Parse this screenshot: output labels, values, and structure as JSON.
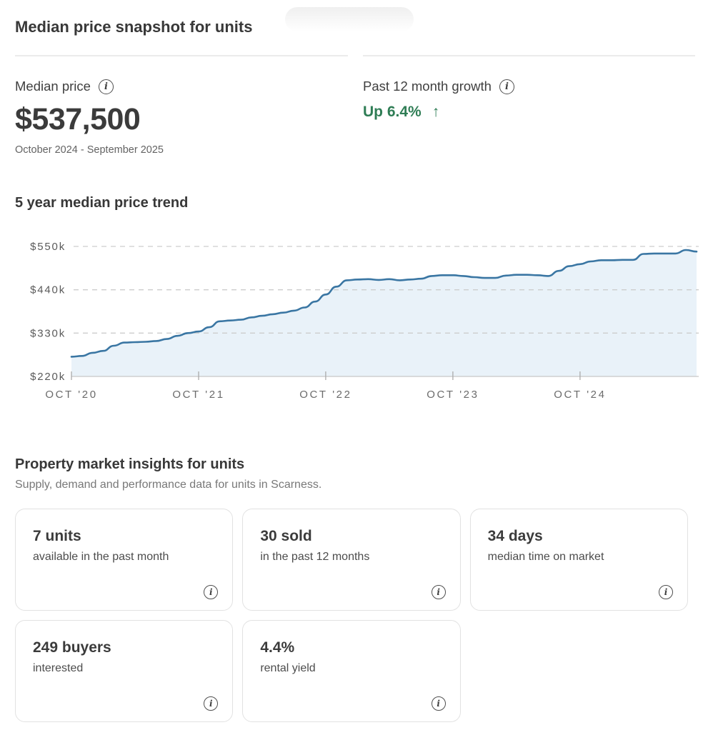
{
  "decoration": {
    "top_pill": "partial pill cut off at top edge"
  },
  "icons": {
    "info_glyph": "i",
    "up_arrow": "↑"
  },
  "snapshot": {
    "title": "Median price snapshot for units",
    "median_price": {
      "label": "Median price",
      "value": "$537,500",
      "period": "October 2024 - September 2025"
    },
    "growth": {
      "label": "Past 12 month growth",
      "value": "Up 6.4%",
      "direction": "up",
      "color": "#2f7d55"
    }
  },
  "trend": {
    "title": "5 year median price trend"
  },
  "chart_data": {
    "type": "area",
    "title": "5 year median price trend",
    "unit": "thousand dollars (k)",
    "x": [
      "Oct 2020",
      "Nov 2020",
      "Dec 2020",
      "Jan 2021",
      "Feb 2021",
      "Mar 2021",
      "Apr 2021",
      "May 2021",
      "Jun 2021",
      "Jul 2021",
      "Aug 2021",
      "Sep 2021",
      "Oct 2021",
      "Nov 2021",
      "Dec 2021",
      "Jan 2022",
      "Feb 2022",
      "Mar 2022",
      "Apr 2022",
      "May 2022",
      "Jun 2022",
      "Jul 2022",
      "Aug 2022",
      "Sep 2022",
      "Oct 2022",
      "Nov 2022",
      "Dec 2022",
      "Jan 2023",
      "Feb 2023",
      "Mar 2023",
      "Apr 2023",
      "May 2023",
      "Jun 2023",
      "Jul 2023",
      "Aug 2023",
      "Sep 2023",
      "Oct 2023",
      "Nov 2023",
      "Dec 2023",
      "Jan 2024",
      "Feb 2024",
      "Mar 2024",
      "Apr 2024",
      "May 2024",
      "Jun 2024",
      "Jul 2024",
      "Aug 2024",
      "Sep 2024",
      "Oct 2024",
      "Nov 2024",
      "Dec 2024",
      "Jan 2025",
      "Feb 2025",
      "Mar 2025",
      "Apr 2025",
      "May 2025",
      "Jun 2025",
      "Jul 2025",
      "Aug 2025",
      "Sep 2025"
    ],
    "values_k": [
      270,
      272,
      280,
      285,
      298,
      306,
      307,
      308,
      310,
      315,
      323,
      330,
      334,
      345,
      360,
      362,
      364,
      370,
      374,
      378,
      382,
      387,
      395,
      410,
      428,
      448,
      464,
      466,
      467,
      465,
      467,
      464,
      466,
      468,
      475,
      477,
      477,
      475,
      472,
      470,
      470,
      476,
      478,
      478,
      477,
      475,
      488,
      500,
      505,
      512,
      515,
      515,
      516,
      516,
      531,
      532,
      532,
      532,
      541,
      537
    ],
    "ylim": [
      220,
      550
    ],
    "yticks": [
      550,
      440,
      330,
      220
    ],
    "ytick_labels": [
      "$550k",
      "$440k",
      "$330k",
      "$220k"
    ],
    "xticks": [
      {
        "index": 0,
        "label": "OCT '20"
      },
      {
        "index": 12,
        "label": "OCT '21"
      },
      {
        "index": 24,
        "label": "OCT '22"
      },
      {
        "index": 36,
        "label": "OCT '23"
      },
      {
        "index": 48,
        "label": "OCT '24"
      }
    ],
    "grid": "horizontal dashed",
    "legend": "none",
    "line_color": "#3a76a3",
    "fill_color": "#e9f2f9",
    "grid_color": "#cdcdcd",
    "axis_color": "#c8c8c8"
  },
  "insights": {
    "title": "Property market insights for units",
    "subtitle": "Supply, demand and performance data for units in Scarness.",
    "cards": [
      {
        "value": "7 units",
        "label": "available in the past month"
      },
      {
        "value": "30 sold",
        "label": "in the past 12 months"
      },
      {
        "value": "34 days",
        "label": "median time on market"
      },
      {
        "value": "249 buyers",
        "label": "interested"
      },
      {
        "value": "4.4%",
        "label": "rental yield"
      }
    ]
  }
}
